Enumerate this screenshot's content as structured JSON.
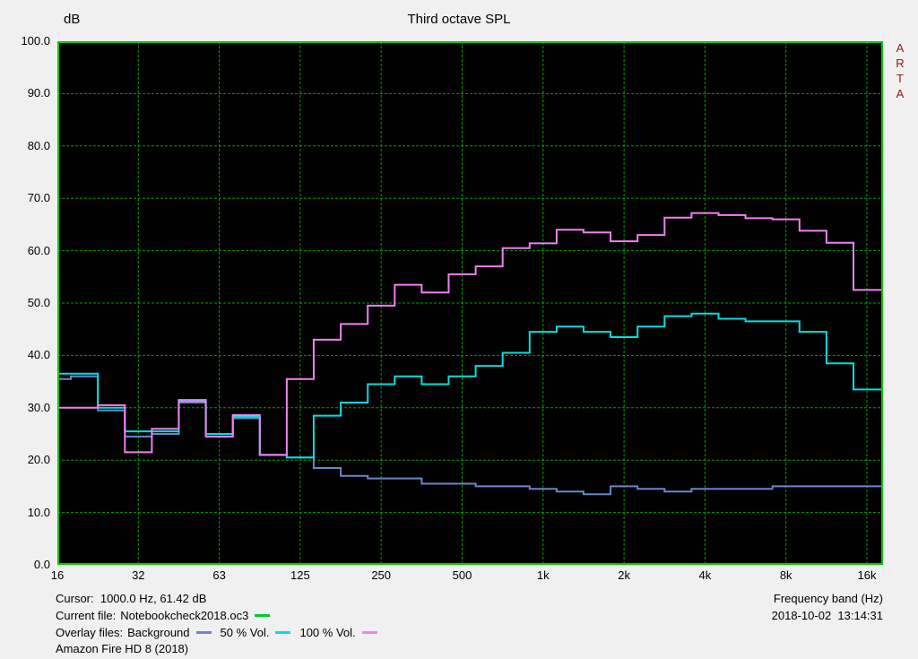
{
  "header": {
    "y_axis_unit": "dB",
    "title": "Third octave SPL",
    "brand_vertical": "ARTA"
  },
  "chart_data": {
    "type": "line",
    "step": true,
    "title": "Third octave SPL",
    "ylabel": "dB",
    "xlabel": "Frequency band (Hz)",
    "ylim": [
      0,
      100
    ],
    "grid": true,
    "plot_bg": "#000000",
    "grid_color": "#00a000",
    "border_color": "#00cc00",
    "y_ticks": [
      "100.0",
      "90.0",
      "80.0",
      "70.0",
      "60.0",
      "50.0",
      "40.0",
      "30.0",
      "20.0",
      "10.0",
      "0.0"
    ],
    "x_ticks": [
      "16",
      "32",
      "63",
      "125",
      "250",
      "500",
      "1k",
      "2k",
      "4k",
      "8k",
      "16k"
    ],
    "x_tick_band_index": [
      0,
      3,
      6,
      9,
      12,
      15,
      18,
      21,
      24,
      27,
      30
    ],
    "bands_hz": [
      16,
      20,
      25,
      31.5,
      40,
      50,
      63,
      80,
      100,
      125,
      160,
      200,
      250,
      315,
      400,
      500,
      630,
      800,
      1000,
      1250,
      1600,
      2000,
      2500,
      3150,
      4000,
      5000,
      6300,
      8000,
      10000,
      12500,
      16000
    ],
    "cursor": {
      "frequency_hz": 1000.0,
      "level_db": 61.42
    },
    "series": [
      {
        "name": "Background",
        "color": "#6a85c8",
        "values": [
          35.5,
          36,
          29.5,
          24.5,
          25,
          31,
          24.5,
          28,
          21,
          20.5,
          18.5,
          17,
          16.5,
          16.5,
          15.5,
          15.5,
          15,
          15,
          14.5,
          14,
          13.5,
          15,
          14.5,
          14,
          14.5,
          14.5,
          14.5,
          15,
          15,
          15,
          15
        ]
      },
      {
        "name": "50 % Vol.",
        "color": "#00e0e0",
        "values": [
          36.5,
          36.5,
          30,
          25.5,
          25.5,
          31.5,
          25,
          28.3,
          21,
          20.5,
          28.5,
          31,
          34.5,
          36,
          34.5,
          36,
          38,
          40.5,
          44.5,
          45.5,
          44.5,
          43.5,
          45.5,
          47.5,
          48,
          47,
          46.5,
          46.5,
          44.5,
          38.5,
          33.5
        ]
      },
      {
        "name": "100 % Vol.",
        "color": "#ee82ee",
        "values": [
          30,
          30,
          30.5,
          21.5,
          26,
          31.3,
          24.5,
          28.6,
          21,
          35.5,
          43,
          46,
          49.5,
          53.5,
          52,
          55.5,
          57,
          60.5,
          61.4,
          64,
          63.5,
          61.8,
          63,
          66.3,
          67.2,
          66.8,
          66.2,
          66,
          63.8,
          61.5,
          52.5
        ]
      }
    ]
  },
  "footer": {
    "cursor_text": "Cursor:  1000.0 Hz, 61.42 dB",
    "frequency_band_label": "Frequency band (Hz)",
    "current_file_label": "Current file:",
    "current_file_name": "Notebookcheck2018.oc3",
    "current_file_color": "#00cc22",
    "overlay_label": "Overlay files:",
    "overlays": [
      {
        "name": "Background",
        "color": "#6a85c8"
      },
      {
        "name": "50 % Vol.",
        "color": "#00e0e0"
      },
      {
        "name": "100 % Vol.",
        "color": "#ee82ee"
      }
    ],
    "timestamp": "2018-10-02  13:14:31",
    "device_name": "Amazon Fire HD 8 (2018)"
  }
}
